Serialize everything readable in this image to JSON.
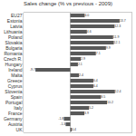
{
  "chart_data": {
    "type": "bar",
    "orientation": "horizontal",
    "title": "Sales change (% vs previous - 2009)",
    "categories": [
      "EU27",
      "Estonia",
      "Latvia",
      "Lithuania",
      "Poland",
      "Slovakia",
      "Bulgaria",
      "Romania",
      "Czech R.",
      "Hungary",
      "Ireland",
      "Malta",
      "Greece",
      "Cyprus",
      "Slovenia",
      "Spain",
      "Portugal",
      "Italy",
      "France",
      "Germany",
      "Austria",
      "UK"
    ],
    "values": [
      4.0,
      13.7,
      12.3,
      4.6,
      11.9,
      12.1,
      9.9,
      7.1,
      2.9,
      2.1,
      -9.7,
      2.4,
      6.4,
      6.4,
      12.4,
      8.5,
      10.2,
      5.2,
      3.9,
      -1.8,
      -1.3,
      0.4
    ],
    "value_labels": [
      "4.0",
      "13.7",
      "12.3",
      "4.6",
      "11.9",
      "12.1",
      "9.9",
      "7.1",
      "2.9",
      "2.1",
      "-9.7",
      "2.4",
      "6.4",
      "6.4",
      "12.4",
      "8.5",
      "10.2",
      "5.2",
      "3.9",
      "-1.8",
      "-1.3",
      "0.4"
    ],
    "color": "#595959",
    "xlim": [
      -13,
      17
    ],
    "grid": false,
    "data_labels": true,
    "tick_labels": "y"
  }
}
